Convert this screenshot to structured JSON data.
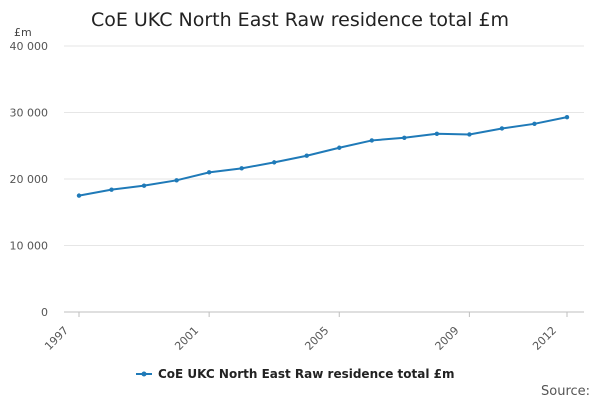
{
  "chart_data": {
    "type": "line",
    "title": "CoE UKC North East Raw residence total £m",
    "y_unit_label": "£m",
    "ylim": [
      0,
      40000
    ],
    "y_ticks": [
      0,
      10000,
      20000,
      30000,
      40000
    ],
    "y_tick_labels": [
      "0",
      "10 000",
      "20 000",
      "30 000",
      "40 000"
    ],
    "x_ticks": [
      1997,
      2001,
      2005,
      2009,
      2012
    ],
    "xlim": [
      1997,
      2012
    ],
    "grid": true,
    "legend_position": "bottom-center",
    "series": [
      {
        "name": "CoE UKC North East Raw residence total £m",
        "color": "#1f7ab8",
        "x": [
          1997,
          1998,
          1999,
          2000,
          2001,
          2002,
          2003,
          2004,
          2005,
          2006,
          2007,
          2008,
          2009,
          2010,
          2011,
          2012
        ],
        "values": [
          17500,
          18400,
          19000,
          19800,
          21000,
          21600,
          22500,
          23500,
          24700,
          25800,
          26200,
          26800,
          26700,
          27600,
          28300,
          29300
        ]
      }
    ],
    "source_label": "Source:"
  }
}
